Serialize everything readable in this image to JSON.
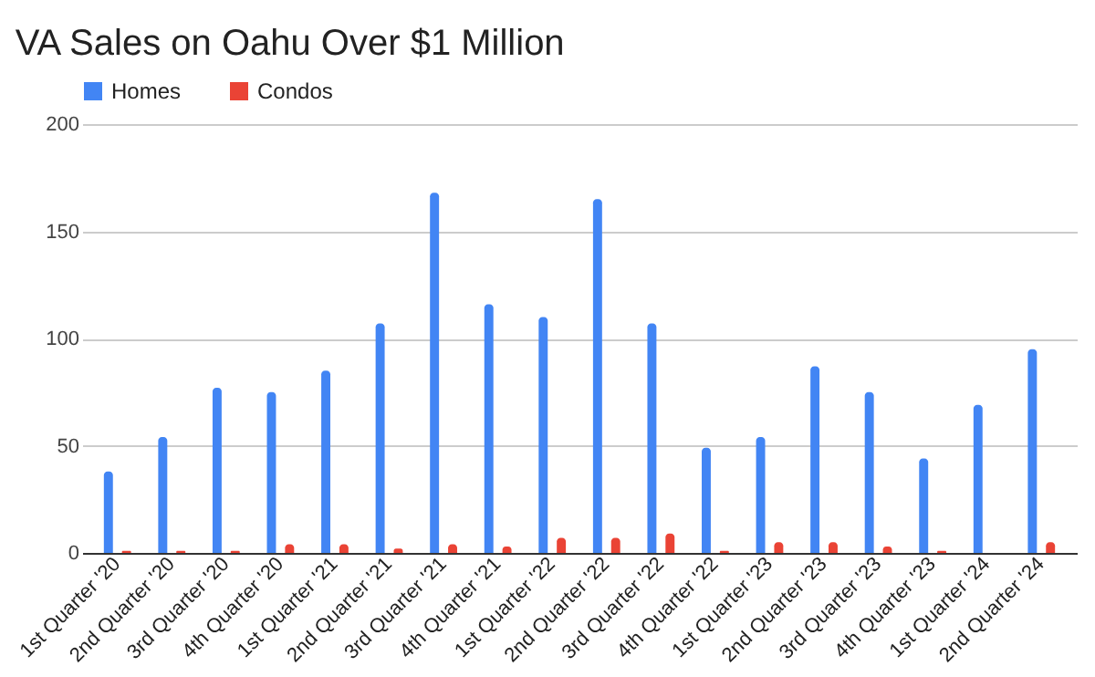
{
  "chart_data": {
    "type": "bar",
    "title": "VA Sales on Oahu Over $1 Million",
    "categories": [
      "1st Quarter '20",
      "2nd Quarter '20",
      "3rd Quarter '20",
      "4th Quarter '20",
      "1st Quarter '21",
      "2nd Quarter '21",
      "3rd Quarter '21",
      "4th Quarter '21",
      "1st Quarter '22",
      "2nd Quarter '22",
      "3rd Quarter '22",
      "4th Quarter '22",
      "1st Quarter '23",
      "2nd Quarter '23",
      "3rd Quarter '23",
      "4th Quarter '23",
      "1st Quarter '24",
      "2nd Quarter '24"
    ],
    "series": [
      {
        "name": "Homes",
        "color": "#4285f4",
        "values": [
          38,
          54,
          77,
          75,
          85,
          107,
          168,
          116,
          110,
          165,
          107,
          49,
          54,
          87,
          75,
          44,
          69,
          95
        ]
      },
      {
        "name": "Condos",
        "color": "#ea4335",
        "values": [
          1,
          1,
          1,
          4,
          4,
          2,
          4,
          3,
          7,
          7,
          9,
          1,
          5,
          5,
          3,
          1,
          0,
          5
        ]
      }
    ],
    "ylim": [
      0,
      200
    ],
    "yticks": [
      0,
      50,
      100,
      150,
      200
    ],
    "grid": "y",
    "legend": "top"
  }
}
